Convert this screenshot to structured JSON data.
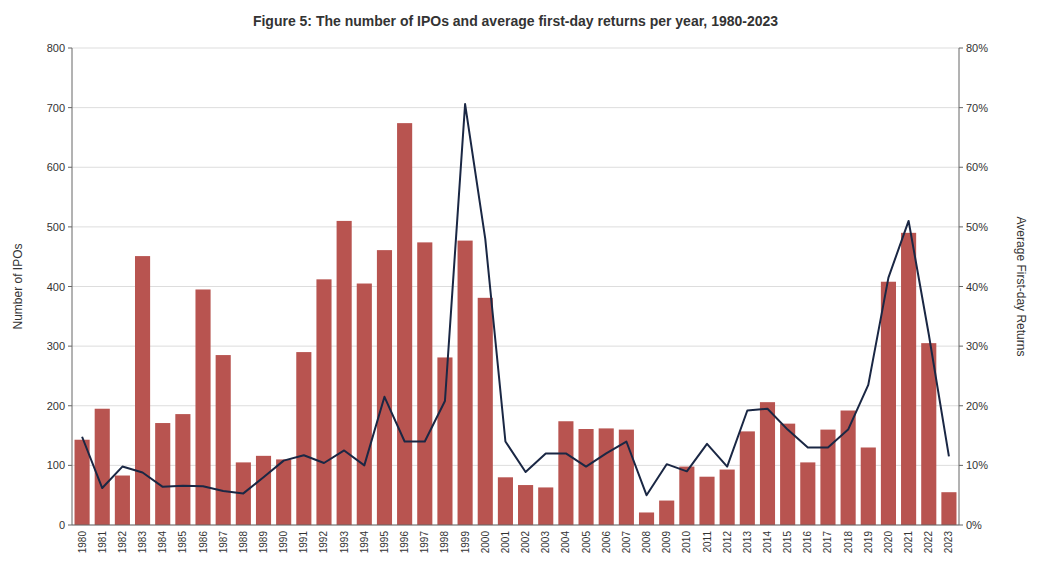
{
  "chart_data": {
    "type": "bar",
    "title": "Figure 5: The number of IPOs and average first-day returns per year, 1980-2023",
    "ylabel": "Number of IPOs",
    "y2label": "Average First-day Returns",
    "categories": [
      "1980",
      "1981",
      "1982",
      "1983",
      "1984",
      "1985",
      "1986",
      "1987",
      "1988",
      "1989",
      "1990",
      "1991",
      "1992",
      "1993",
      "1994",
      "1995",
      "1996",
      "1997",
      "1998",
      "1999",
      "2000",
      "2001",
      "2002",
      "2003",
      "2004",
      "2005",
      "2006",
      "2007",
      "2008",
      "2009",
      "2010",
      "2011",
      "2012",
      "2013",
      "2014",
      "2015",
      "2016",
      "2017",
      "2018",
      "2019",
      "2020",
      "2021",
      "2022",
      "2023"
    ],
    "series": [
      {
        "type": "bar",
        "color": "#b85450",
        "values": [
          143,
          195,
          83,
          451,
          171,
          186,
          395,
          285,
          105,
          116,
          110,
          290,
          412,
          510,
          405,
          461,
          674,
          474,
          281,
          477,
          381,
          80,
          67,
          63,
          174,
          161,
          162,
          160,
          21,
          41,
          98,
          81,
          93,
          157,
          206,
          170,
          105,
          160,
          192,
          130,
          408,
          490,
          305,
          55
        ]
      },
      {
        "type": "line",
        "axis": "y2",
        "color": "#1a2744",
        "values": [
          0.148,
          0.062,
          0.098,
          0.088,
          0.064,
          0.066,
          0.065,
          0.057,
          0.053,
          0.08,
          0.108,
          0.117,
          0.104,
          0.125,
          0.1,
          0.215,
          0.14,
          0.14,
          0.208,
          0.706,
          0.48,
          0.14,
          0.089,
          0.12,
          0.12,
          0.098,
          0.12,
          0.14,
          0.05,
          0.102,
          0.09,
          0.136,
          0.098,
          0.192,
          0.195,
          0.16,
          0.13,
          0.13,
          0.16,
          0.235,
          0.415,
          0.51,
          0.32,
          0.115
        ]
      }
    ],
    "ylim": [
      0,
      800
    ],
    "yticks": [
      0,
      100,
      200,
      300,
      400,
      500,
      600,
      700,
      800
    ],
    "y2lim": [
      0.0,
      0.8
    ],
    "y2ticks": [
      {
        "value": 0.0,
        "label": "0%"
      },
      {
        "value": 0.1,
        "label": "10%"
      },
      {
        "value": 0.2,
        "label": "20%"
      },
      {
        "value": 0.3,
        "label": "30%"
      },
      {
        "value": 0.4,
        "label": "40%"
      },
      {
        "value": 0.5,
        "label": "50%"
      },
      {
        "value": 0.6,
        "label": "60%"
      },
      {
        "value": 0.7,
        "label": "70%"
      },
      {
        "value": 0.8,
        "label": "80%"
      }
    ],
    "grid": true
  }
}
